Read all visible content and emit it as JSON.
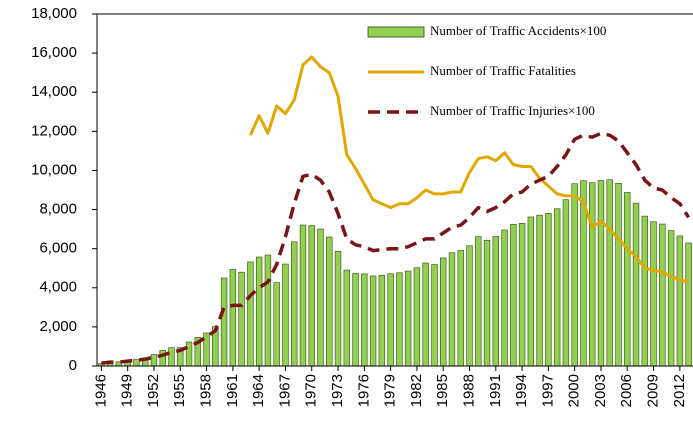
{
  "chart_data": {
    "type": "bar",
    "categories": [
      "1946",
      null,
      null,
      "1949",
      null,
      null,
      "1952",
      null,
      null,
      "1955",
      null,
      null,
      "1958",
      null,
      null,
      "1961",
      null,
      null,
      "1964",
      null,
      null,
      "1967",
      null,
      null,
      "1970",
      null,
      null,
      "1973",
      null,
      null,
      "1976",
      null,
      null,
      "1979",
      null,
      null,
      "1982",
      null,
      null,
      "1985",
      null,
      null,
      "1988",
      null,
      null,
      "1991",
      null,
      null,
      "1994",
      null,
      null,
      "1997",
      null,
      null,
      "2000",
      null,
      null,
      "2003",
      null,
      null,
      "2006",
      null,
      null,
      "2009",
      null,
      null,
      "2012",
      null
    ],
    "series": [
      {
        "name": "Number of Traffic Accidents×100",
        "type": "bar",
        "color": "#92d050",
        "values": [
          125,
          200,
          213,
          251,
          332,
          414,
          585,
          800,
          939,
          940,
          1227,
          1468,
          1688,
          2013,
          4499,
          4937,
          4798,
          5320,
          5572,
          5673,
          4259,
          5215,
          6351,
          7209,
          7181,
          7003,
          6593,
          5867,
          4905,
          4729,
          4710,
          4606,
          4640,
          4716,
          4767,
          4856,
          5023,
          5264,
          5186,
          5528,
          5792,
          5907,
          6145,
          6614,
          6431,
          6624,
          6953,
          7247,
          7295,
          7618,
          7711,
          7804,
          8039,
          8504,
          9320,
          9473,
          9370,
          9483,
          9527,
          9343,
          8873,
          8327,
          7664,
          7376,
          7259,
          6921,
          6652,
          6290
        ]
      },
      {
        "name": "Number of Traffic Fatalities",
        "type": "line",
        "style": "solid",
        "color": "#e0a800",
        "values": [
          null,
          null,
          null,
          null,
          null,
          null,
          null,
          null,
          null,
          null,
          null,
          null,
          null,
          null,
          null,
          null,
          null,
          11800,
          12800,
          11900,
          13300,
          12900,
          13600,
          15400,
          15800,
          15300,
          15000,
          13800,
          10800,
          10100,
          9300,
          8500,
          8300,
          8100,
          8300,
          8300,
          8600,
          9000,
          8800,
          8800,
          8900,
          8900,
          9900,
          10600,
          10700,
          10500,
          10900,
          10300,
          10200,
          10200,
          9600,
          9200,
          8800,
          8700,
          8700,
          8400,
          7100,
          7400,
          7000,
          6500,
          6000,
          5600,
          5000,
          4900,
          4800,
          4600,
          4400,
          4300
        ]
      },
      {
        "name": "Number of Traffic Injuries×100",
        "type": "line",
        "style": "dashed",
        "color": "#7b1416",
        "values": [
          150,
          200,
          200,
          250,
          300,
          350,
          450,
          550,
          700,
          800,
          1000,
          1200,
          1500,
          1800,
          3000,
          3100,
          3100,
          3600,
          4000,
          4300,
          5200,
          6600,
          8300,
          9700,
          9800,
          9500,
          8900,
          7800,
          6500,
          6200,
          6100,
          5900,
          5950,
          6000,
          6000,
          6100,
          6300,
          6500,
          6500,
          6800,
          7100,
          7200,
          7600,
          8100,
          7900,
          8100,
          8400,
          8800,
          8900,
          9300,
          9500,
          9700,
          10200,
          10800,
          11600,
          11800,
          11700,
          11900,
          11800,
          11500,
          10900,
          10300,
          9500,
          9100,
          9000,
          8600,
          8300,
          7600
        ]
      }
    ],
    "ylim": [
      0,
      18000
    ],
    "yticks": [
      0,
      {
        "value": 2000,
        "label": "2,000"
      },
      {
        "value": 4000,
        "label": "4,000"
      },
      {
        "value": 6000,
        "label": "6,000"
      },
      {
        "value": 8000,
        "label": "8,000"
      },
      {
        "value": 10000,
        "label": "10,000"
      },
      {
        "value": 12000,
        "label": "12,000"
      },
      {
        "value": 14000,
        "label": "14,000"
      },
      {
        "value": 16000,
        "label": "16,000"
      },
      {
        "value": 18000,
        "label": "18,000"
      }
    ],
    "grid": false,
    "legend": "top-right"
  }
}
